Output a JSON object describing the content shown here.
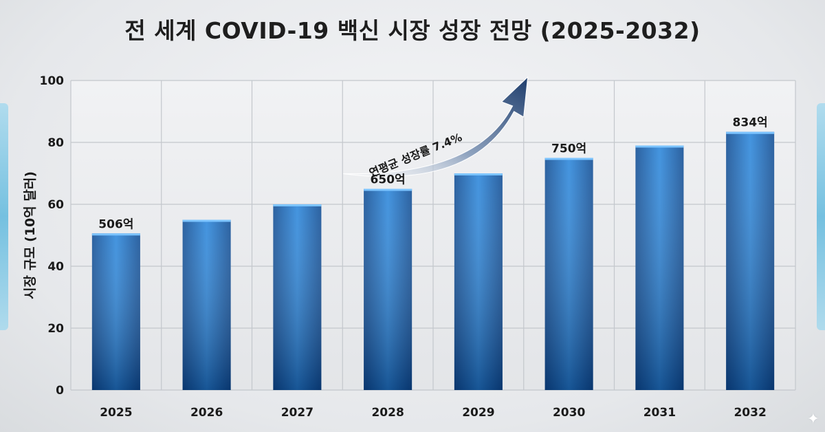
{
  "title": "전 세계 COVID-19 백신 시장 성장 전망 (2025-2032)",
  "chart_data": {
    "type": "bar",
    "title": "전 세계 COVID-19 백신 시장 성장 전망 (2025-2032)",
    "xlabel": "",
    "ylabel": "시장 규모 (10억 달러)",
    "categories": [
      "2025",
      "2026",
      "2027",
      "2028",
      "2029",
      "2030",
      "2031",
      "2032"
    ],
    "values": [
      50.6,
      55,
      60,
      65,
      70,
      75,
      79,
      83.4
    ],
    "ylim": [
      0,
      100
    ],
    "yticks": [
      "0",
      "20",
      "40",
      "60",
      "80",
      "100"
    ],
    "grid": true,
    "bar_color": "#1f6fc0",
    "data_labels": [
      {
        "index": 0,
        "text": "506억"
      },
      {
        "index": 3,
        "text": "650억"
      },
      {
        "index": 5,
        "text": "750억"
      },
      {
        "index": 7,
        "text": "834억"
      }
    ],
    "annotation": {
      "text": "연평균 성장률 7.4%",
      "from_category": "2028",
      "to_category": "2030"
    }
  },
  "decor": {
    "sparkle_icon": "sparkle-icon",
    "sparkle_glyph": "✦"
  }
}
